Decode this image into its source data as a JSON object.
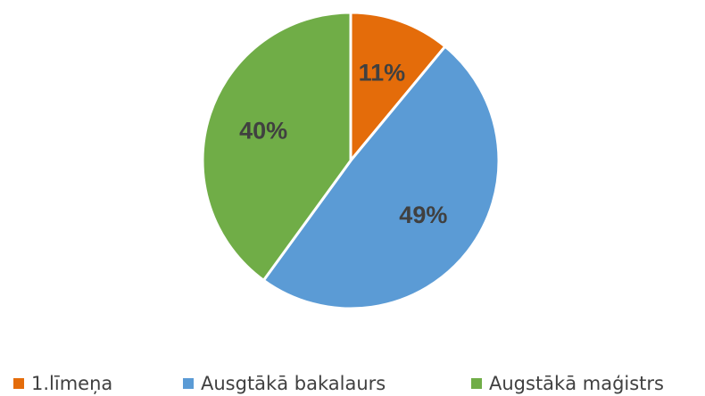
{
  "chart_data": {
    "type": "pie",
    "categories": [
      "1.līmeņa",
      "Ausgtākā bakalaurs",
      "Augstākā maģistrs"
    ],
    "values": [
      11,
      49,
      40
    ],
    "value_labels": [
      "11%",
      "49%",
      "40%"
    ],
    "colors": [
      "#e46c0a",
      "#5b9bd5",
      "#70ad47"
    ],
    "legend": "bottom"
  }
}
